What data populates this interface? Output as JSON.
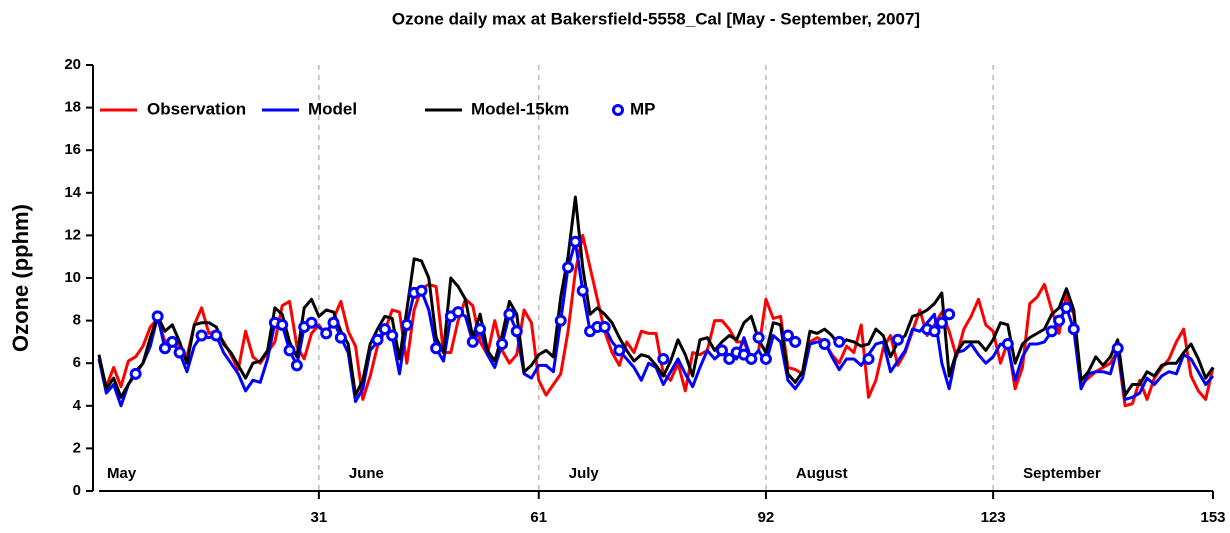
{
  "chart_data": {
    "type": "line",
    "title": "Ozone daily max at  Bakersfield-5558_Cal [May - September, 2007]",
    "y_label": "Ozone (pphm)",
    "months": [
      "May",
      "June",
      "July",
      "August",
      "September"
    ],
    "x": [
      1,
      2,
      3,
      4,
      5,
      6,
      7,
      8,
      9,
      10,
      11,
      12,
      13,
      14,
      15,
      16,
      17,
      18,
      19,
      20,
      21,
      22,
      23,
      24,
      25,
      26,
      27,
      28,
      29,
      30,
      31,
      32,
      33,
      34,
      35,
      36,
      37,
      38,
      39,
      40,
      41,
      42,
      43,
      44,
      45,
      46,
      47,
      48,
      49,
      50,
      51,
      52,
      53,
      54,
      55,
      56,
      57,
      58,
      59,
      60,
      61,
      62,
      63,
      64,
      65,
      66,
      67,
      68,
      69,
      70,
      71,
      72,
      73,
      74,
      75,
      76,
      77,
      78,
      79,
      80,
      81,
      82,
      83,
      84,
      85,
      86,
      87,
      88,
      89,
      90,
      91,
      92,
      93,
      94,
      95,
      96,
      97,
      98,
      99,
      100,
      101,
      102,
      103,
      104,
      105,
      106,
      107,
      108,
      109,
      110,
      111,
      112,
      113,
      114,
      115,
      116,
      117,
      118,
      119,
      120,
      121,
      122,
      123,
      124,
      125,
      126,
      127,
      128,
      129,
      130,
      131,
      132,
      133,
      134,
      135,
      136,
      137,
      138,
      139,
      140,
      141,
      142,
      143,
      144,
      145,
      146,
      147,
      148,
      149,
      150,
      151,
      152,
      153
    ],
    "xlim": [
      1,
      153
    ],
    "xticks": [
      31,
      61,
      92,
      123,
      153
    ],
    "ylim": [
      0,
      20
    ],
    "yticks": [
      0,
      2,
      4,
      6,
      8,
      10,
      12,
      14,
      16,
      18,
      20
    ],
    "grid": true,
    "series": [
      {
        "name": "Observation",
        "color": "#ff0000",
        "values": [
          6.2,
          4.9,
          5.8,
          4.9,
          6.1,
          6.3,
          6.8,
          7.7,
          8.1,
          7.0,
          7.2,
          6.8,
          6.3,
          7.8,
          8.6,
          7.4,
          7.5,
          7.0,
          6.4,
          5.7,
          7.5,
          6.3,
          6.0,
          6.5,
          7.0,
          8.7,
          8.9,
          6.8,
          6.2,
          7.4,
          7.8,
          7.3,
          8.1,
          8.9,
          7.5,
          6.8,
          4.3,
          5.4,
          6.8,
          7.5,
          8.5,
          8.4,
          6.0,
          8.5,
          9.5,
          9.7,
          9.6,
          6.5,
          6.5,
          8.0,
          9.0,
          8.7,
          7.0,
          6.4,
          8.0,
          6.6,
          6.0,
          6.4,
          8.5,
          7.9,
          5.2,
          4.5,
          5.0,
          5.5,
          7.5,
          10.3,
          12.0,
          10.5,
          9.0,
          7.5,
          6.5,
          5.9,
          7.0,
          6.5,
          7.5,
          7.4,
          7.4,
          5.5,
          5.2,
          6.0,
          4.7,
          6.5,
          6.4,
          6.6,
          8.0,
          8.0,
          7.6,
          7.0,
          7.0,
          6.2,
          6.6,
          9.0,
          8.1,
          8.2,
          5.8,
          5.7,
          5.5,
          7.0,
          7.2,
          7.0,
          6.4,
          6.0,
          6.8,
          6.5,
          7.8,
          4.4,
          5.2,
          6.7,
          7.3,
          5.9,
          6.5,
          7.5,
          8.5,
          7.3,
          7.8,
          8.4,
          7.5,
          6.3,
          7.6,
          8.2,
          9.0,
          7.8,
          7.5,
          6.0,
          7.0,
          4.8,
          5.8,
          8.8,
          9.1,
          9.7,
          8.5,
          7.4,
          9.2,
          8.3,
          5.0,
          5.3,
          5.6,
          5.8,
          6.0,
          6.6,
          4.0,
          4.1,
          5.2,
          4.3,
          5.3,
          5.8,
          6.2,
          7.0,
          7.6,
          5.4,
          4.7,
          4.3,
          5.8
        ]
      },
      {
        "name": "Model",
        "color": "#0000ff",
        "values": [
          6.2,
          4.6,
          5.0,
          4.0,
          5.0,
          5.5,
          6.0,
          6.8,
          8.2,
          6.7,
          7.0,
          6.5,
          5.6,
          6.8,
          7.3,
          7.2,
          7.3,
          6.5,
          6.0,
          5.5,
          4.7,
          5.2,
          5.1,
          6.2,
          7.9,
          7.8,
          6.6,
          5.9,
          7.7,
          7.9,
          7.7,
          7.4,
          8.0,
          7.2,
          6.5,
          4.2,
          4.8,
          6.6,
          7.0,
          7.6,
          7.3,
          5.5,
          7.8,
          9.3,
          9.4,
          8.5,
          6.7,
          6.1,
          8.2,
          8.4,
          8.2,
          7.0,
          7.6,
          6.4,
          5.8,
          6.9,
          8.3,
          7.5,
          5.5,
          5.3,
          5.9,
          5.9,
          5.6,
          8.0,
          10.5,
          11.7,
          9.4,
          7.5,
          7.7,
          7.7,
          7.0,
          6.6,
          6.2,
          5.8,
          5.2,
          6.0,
          5.8,
          5.0,
          5.6,
          6.2,
          5.5,
          4.9,
          5.8,
          6.6,
          6.2,
          6.5,
          6.4,
          6.2,
          7.2,
          6.2,
          6.6,
          6.0,
          7.3,
          7.0,
          5.2,
          4.8,
          5.3,
          6.9,
          7.0,
          7.0,
          6.3,
          5.7,
          6.2,
          6.2,
          5.9,
          6.4,
          6.9,
          7.0,
          5.6,
          6.1,
          6.6,
          7.6,
          7.5,
          7.9,
          8.3,
          6.0,
          4.8,
          6.5,
          6.6,
          6.9,
          6.4,
          6.0,
          6.3,
          6.9,
          6.8,
          5.2,
          6.3,
          6.9,
          6.9,
          7.0,
          7.5,
          8.0,
          8.6,
          7.6,
          4.8,
          5.5,
          5.6,
          5.6,
          5.5,
          6.7,
          4.3,
          4.4,
          4.6,
          5.3,
          5.0,
          5.4,
          5.6,
          5.5,
          6.4,
          6.2,
          5.6,
          5.0,
          5.4
        ]
      },
      {
        "name": "Model-15km",
        "color": "#000000",
        "values": [
          6.4,
          4.8,
          5.3,
          4.4,
          5.0,
          5.6,
          6.0,
          7.2,
          8.2,
          7.5,
          7.8,
          7.0,
          6.0,
          7.8,
          7.9,
          7.9,
          7.7,
          6.9,
          6.5,
          5.9,
          5.3,
          6.0,
          6.1,
          6.6,
          8.6,
          8.3,
          7.0,
          6.3,
          8.6,
          9.0,
          8.2,
          8.5,
          8.4,
          7.5,
          6.9,
          4.5,
          5.2,
          6.9,
          7.6,
          8.2,
          8.1,
          6.2,
          8.5,
          10.9,
          10.8,
          10.0,
          7.2,
          6.5,
          10.0,
          9.6,
          9.0,
          7.2,
          8.3,
          6.6,
          6.1,
          7.3,
          8.9,
          8.3,
          5.6,
          5.9,
          6.4,
          6.6,
          6.3,
          9.1,
          11.0,
          13.8,
          10.5,
          8.3,
          8.6,
          8.3,
          7.9,
          7.2,
          6.6,
          6.1,
          6.4,
          6.3,
          5.9,
          5.4,
          6.1,
          7.1,
          6.4,
          5.4,
          7.1,
          7.2,
          6.6,
          7.0,
          7.3,
          7.1,
          7.9,
          8.2,
          7.1,
          6.5,
          7.9,
          7.8,
          5.5,
          5.1,
          5.6,
          7.5,
          7.4,
          7.6,
          7.3,
          6.8,
          7.1,
          7.0,
          6.8,
          6.9,
          7.6,
          7.3,
          6.3,
          7.0,
          7.3,
          8.2,
          8.3,
          8.5,
          8.8,
          9.3,
          5.4,
          6.5,
          7.0,
          7.0,
          7.0,
          6.6,
          7.1,
          7.9,
          7.8,
          6.0,
          6.9,
          7.2,
          7.4,
          7.6,
          8.3,
          8.6,
          9.5,
          8.5,
          5.2,
          5.6,
          6.3,
          5.9,
          6.3,
          7.1,
          4.5,
          5.0,
          5.0,
          5.6,
          5.4,
          5.9,
          6.0,
          6.0,
          6.5,
          6.9,
          6.2,
          5.3,
          5.8
        ]
      },
      {
        "name": "MP",
        "color": "#0000ff",
        "marker": "circle",
        "x": [
          6,
          9,
          10,
          11,
          12,
          15,
          17,
          25,
          26,
          27,
          28,
          29,
          30,
          32,
          33,
          34,
          39,
          40,
          41,
          43,
          44,
          45,
          47,
          49,
          50,
          52,
          53,
          56,
          57,
          58,
          64,
          65,
          66,
          67,
          68,
          69,
          70,
          72,
          78,
          86,
          87,
          88,
          89,
          90,
          91,
          92,
          95,
          96,
          100,
          102,
          106,
          110,
          114,
          115,
          116,
          117,
          125,
          131,
          132,
          133,
          134,
          140
        ],
        "values": [
          5.5,
          8.2,
          6.7,
          7.0,
          6.5,
          7.3,
          7.3,
          7.9,
          7.8,
          6.6,
          5.9,
          7.7,
          7.9,
          7.4,
          7.9,
          7.2,
          7.1,
          7.6,
          7.3,
          7.8,
          9.3,
          9.4,
          6.7,
          8.2,
          8.4,
          7.0,
          7.6,
          6.9,
          8.3,
          7.5,
          8.0,
          10.5,
          11.7,
          9.4,
          7.5,
          7.7,
          7.7,
          6.6,
          6.2,
          6.6,
          6.2,
          6.5,
          6.4,
          6.2,
          7.2,
          6.2,
          7.3,
          7.0,
          6.9,
          7.0,
          6.2,
          7.1,
          7.6,
          7.5,
          7.9,
          8.3,
          6.9,
          7.5,
          8.0,
          8.6,
          7.6,
          6.7
        ]
      }
    ]
  }
}
